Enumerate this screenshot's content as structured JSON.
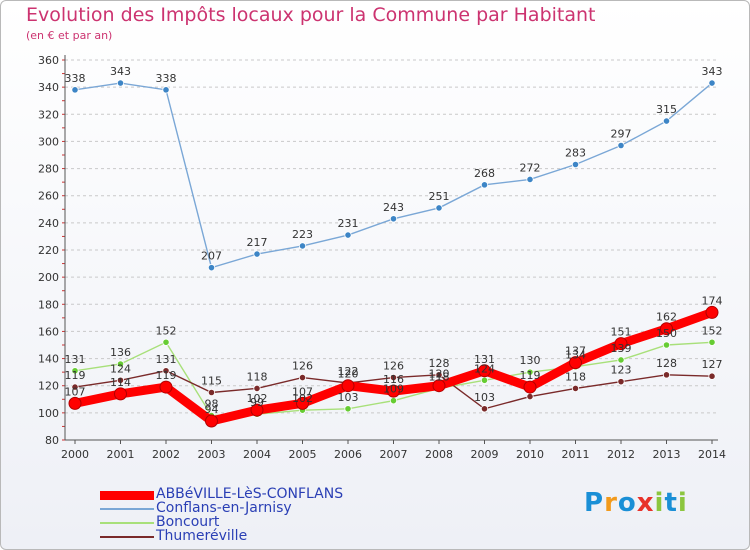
{
  "header": {
    "title": "Evolution des Impôts locaux pour la Commune par Habitant",
    "subtitle": "(en € et par an)"
  },
  "chart_data": {
    "type": "line",
    "title": "Evolution des Impôts locaux pour la Commune par Habitant",
    "subtitle": "(en € et par an)",
    "xlabel": "",
    "ylabel": "",
    "x": [
      "2000",
      "2001",
      "2002",
      "2003",
      "2004",
      "2005",
      "2006",
      "2007",
      "2008",
      "2009",
      "2010",
      "2011",
      "2012",
      "2013",
      "2014"
    ],
    "ylim": [
      80,
      360
    ],
    "yticks": [
      80,
      100,
      120,
      140,
      160,
      180,
      200,
      220,
      240,
      260,
      280,
      300,
      320,
      340,
      360
    ],
    "grid": "horizontal dashed",
    "legend_position": "bottom-left",
    "series": [
      {
        "name": "ABBéVILLE-LèS-CONFLANS",
        "color": "#ff0000",
        "emphasis": true,
        "values": [
          107,
          114,
          119,
          94,
          102,
          107,
          120,
          116,
          120,
          131,
          119,
          137,
          151,
          162,
          174
        ],
        "labels": [
          "107",
          "114",
          "119",
          "94",
          "102",
          "107",
          "120",
          "116",
          "120",
          "131",
          "119",
          "137",
          "151",
          "162",
          "174"
        ]
      },
      {
        "name": "Conflans-en-Jarnisy",
        "color": "#7aa7d6",
        "marker_color": "#3d85c6",
        "values": [
          338,
          343,
          338,
          207,
          217,
          223,
          231,
          243,
          251,
          268,
          272,
          283,
          297,
          315,
          343
        ],
        "labels": [
          "338",
          "343",
          "338",
          "207",
          "217",
          "223",
          "231",
          "243",
          "251",
          "268",
          "272",
          "283",
          "297",
          "315",
          "343"
        ]
      },
      {
        "name": "Boncourt",
        "color": "#a8e07a",
        "marker_color": "#66cc33",
        "values": [
          131,
          136,
          152,
          98,
          99,
          102,
          103,
          109,
          118,
          124,
          130,
          134,
          139,
          150,
          152
        ],
        "labels": [
          "131",
          "136",
          "152",
          "98",
          "99",
          "102",
          "103",
          "109",
          "118",
          "124",
          "130",
          "134",
          "139",
          "150",
          "152"
        ]
      },
      {
        "name": "Thumeréville",
        "color": "#7a2a2a",
        "marker_color": "#7a2a2a",
        "values": [
          119,
          124,
          131,
          115,
          118,
          126,
          122,
          126,
          128,
          103,
          112,
          118,
          123,
          128,
          127
        ],
        "labels": [
          "119",
          "124",
          "131",
          "115",
          "118",
          "126",
          "122",
          "126",
          "128",
          "103",
          "",
          "118",
          "123",
          "128",
          "127"
        ]
      }
    ]
  },
  "legend": {
    "items": [
      {
        "label": "ABBéVILLE-LèS-CONFLANS",
        "color": "#ff0000"
      },
      {
        "label": "Conflans-en-Jarnisy",
        "color": "#7aa7d6"
      },
      {
        "label": "Boncourt",
        "color": "#a8e07a"
      },
      {
        "label": "Thumeréville",
        "color": "#7a2a2a"
      }
    ]
  },
  "logo": {
    "letters": [
      "P",
      "r",
      "o",
      "x",
      "i",
      "t",
      "i"
    ],
    "colors": [
      "#1a8fd6",
      "#f29a1c",
      "#1a8fd6",
      "#e8322a",
      "#8cc63f",
      "#1a8fd6",
      "#8cc63f"
    ]
  }
}
